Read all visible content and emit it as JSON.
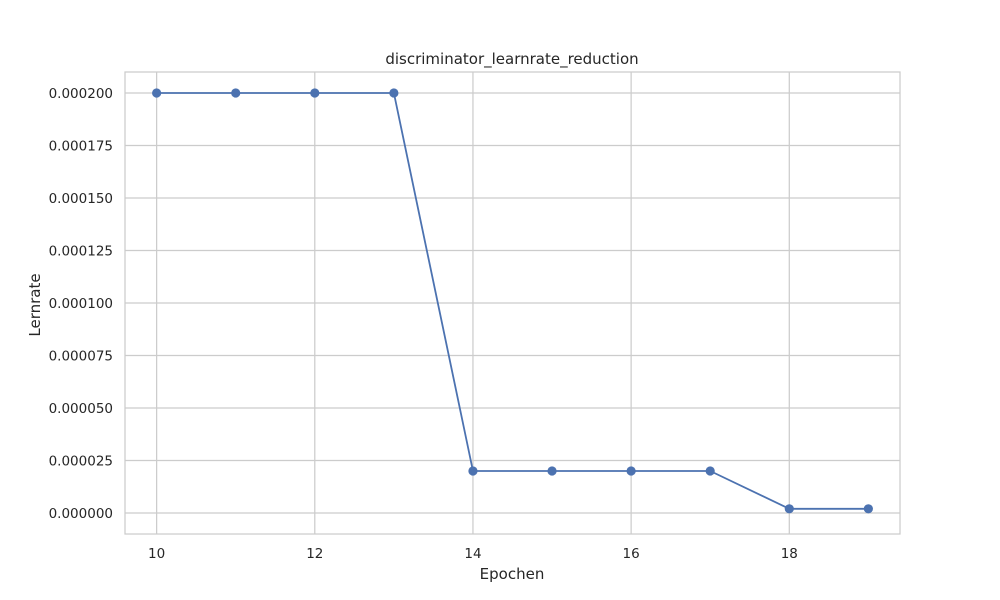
{
  "chart_data": {
    "type": "line",
    "title": "discriminator_learnrate_reduction",
    "xlabel": "Epochen",
    "ylabel": "Lernrate",
    "xlim": [
      9.6,
      19.4
    ],
    "ylim": [
      -1e-05,
      0.00021
    ],
    "xticks": [
      10,
      12,
      14,
      16,
      18
    ],
    "xtick_labels": [
      "10",
      "12",
      "14",
      "16",
      "18"
    ],
    "yticks": [
      0,
      2.5e-05,
      5e-05,
      7.5e-05,
      0.0001,
      0.000125,
      0.00015,
      0.000175,
      0.0002
    ],
    "ytick_labels": [
      "0.000000",
      "0.000025",
      "0.000050",
      "0.000075",
      "0.000100",
      "0.000125",
      "0.000150",
      "0.000175",
      "0.000200"
    ],
    "grid": true,
    "series": [
      {
        "color": "#4c72b0",
        "marker": "circle",
        "x": [
          10,
          11,
          12,
          13,
          14,
          15,
          16,
          17,
          18,
          19
        ],
        "y": [
          0.0002,
          0.0002,
          0.0002,
          0.0002,
          2e-05,
          2e-05,
          2e-05,
          2e-05,
          2e-06,
          2e-06
        ]
      }
    ]
  }
}
